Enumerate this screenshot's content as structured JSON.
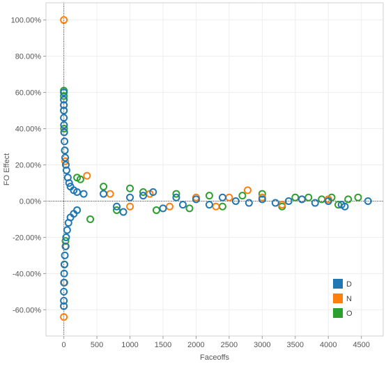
{
  "chart_data": {
    "type": "scatter",
    "xlabel": "Faceoffs",
    "ylabel": "FO Effect",
    "xlim": [
      -270,
      4830
    ],
    "ylim": [
      -0.745,
      1.095
    ],
    "x_ticks": [
      0,
      500,
      1000,
      1500,
      2000,
      2500,
      3000,
      3500,
      4000,
      4500
    ],
    "x_tick_labels": [
      "0",
      "500",
      "1000",
      "1500",
      "2000",
      "2500",
      "3000",
      "3500",
      "4000",
      "4500"
    ],
    "y_ticks": [
      1.0,
      0.8,
      0.6,
      0.4,
      0.2,
      0.0,
      -0.2,
      -0.4,
      -0.6
    ],
    "y_tick_labels": [
      "100.00%",
      "80.00%",
      "60.00%",
      "40.00%",
      "20.00%",
      "0.00%",
      "-20.00%",
      "-40.00%",
      "-60.00%"
    ],
    "reference_lines": {
      "x": 0,
      "y": 0
    },
    "grid": true,
    "legend_position": "bottom-right",
    "marker": "hollow-circle",
    "series": [
      {
        "name": "D",
        "color": "#1f77b4",
        "points": [
          [
            0,
            0.6
          ],
          [
            0,
            0.56
          ],
          [
            0,
            0.53
          ],
          [
            0,
            0.5
          ],
          [
            0,
            0.46
          ],
          [
            2,
            0.42
          ],
          [
            5,
            0.38
          ],
          [
            10,
            0.33
          ],
          [
            15,
            0.28
          ],
          [
            20,
            0.24
          ],
          [
            30,
            0.2
          ],
          [
            40,
            0.17
          ],
          [
            60,
            0.13
          ],
          [
            80,
            0.1
          ],
          [
            100,
            0.08
          ],
          [
            150,
            0.06
          ],
          [
            200,
            0.05
          ],
          [
            300,
            0.04
          ],
          [
            0,
            -0.58
          ],
          [
            0,
            -0.55
          ],
          [
            0,
            -0.5
          ],
          [
            2,
            -0.45
          ],
          [
            5,
            -0.4
          ],
          [
            10,
            -0.35
          ],
          [
            15,
            -0.3
          ],
          [
            25,
            -0.25
          ],
          [
            35,
            -0.2
          ],
          [
            50,
            -0.16
          ],
          [
            70,
            -0.12
          ],
          [
            100,
            -0.09
          ],
          [
            150,
            -0.07
          ],
          [
            200,
            -0.05
          ],
          [
            600,
            0.04
          ],
          [
            800,
            -0.03
          ],
          [
            900,
            -0.06
          ],
          [
            1000,
            0.02
          ],
          [
            1200,
            0.03
          ],
          [
            1350,
            0.05
          ],
          [
            1500,
            -0.04
          ],
          [
            1700,
            0.02
          ],
          [
            1800,
            -0.02
          ],
          [
            2000,
            0.01
          ],
          [
            2200,
            -0.02
          ],
          [
            2400,
            0.02
          ],
          [
            2600,
            0.0
          ],
          [
            2800,
            -0.01
          ],
          [
            3000,
            0.01
          ],
          [
            3200,
            -0.01
          ],
          [
            3400,
            0.0
          ],
          [
            3600,
            0.01
          ],
          [
            3800,
            -0.01
          ],
          [
            4000,
            0.0
          ],
          [
            4200,
            -0.02
          ],
          [
            4250,
            -0.03
          ],
          [
            4600,
            0.0
          ]
        ]
      },
      {
        "name": "N",
        "color": "#ff7f0e",
        "points": [
          [
            0,
            1.0
          ],
          [
            0,
            -0.64
          ],
          [
            0,
            -0.58
          ],
          [
            0,
            0.53
          ],
          [
            5,
            0.38
          ],
          [
            10,
            -0.45
          ],
          [
            20,
            0.22
          ],
          [
            30,
            -0.25
          ],
          [
            350,
            0.14
          ],
          [
            700,
            0.04
          ],
          [
            1000,
            -0.03
          ],
          [
            1300,
            0.04
          ],
          [
            1600,
            -0.03
          ],
          [
            2000,
            0.02
          ],
          [
            2300,
            -0.03
          ],
          [
            2500,
            0.02
          ],
          [
            2780,
            0.06
          ],
          [
            3000,
            0.02
          ],
          [
            3300,
            -0.02
          ],
          [
            3600,
            0.01
          ],
          [
            4000,
            0.01
          ]
        ]
      },
      {
        "name": "O",
        "color": "#2ca02c",
        "points": [
          [
            0,
            0.61
          ],
          [
            0,
            0.58
          ],
          [
            0,
            0.5
          ],
          [
            3,
            0.4
          ],
          [
            8,
            -0.35
          ],
          [
            15,
            0.28
          ],
          [
            25,
            -0.22
          ],
          [
            200,
            0.13
          ],
          [
            250,
            0.12
          ],
          [
            400,
            -0.1
          ],
          [
            600,
            0.08
          ],
          [
            800,
            -0.05
          ],
          [
            1000,
            0.07
          ],
          [
            1200,
            0.05
          ],
          [
            1400,
            -0.05
          ],
          [
            1700,
            0.04
          ],
          [
            1900,
            -0.04
          ],
          [
            2200,
            0.03
          ],
          [
            2400,
            -0.03
          ],
          [
            2700,
            0.03
          ],
          [
            3000,
            0.04
          ],
          [
            3300,
            -0.03
          ],
          [
            3500,
            0.02
          ],
          [
            3700,
            0.02
          ],
          [
            3900,
            0.01
          ],
          [
            4050,
            0.02
          ],
          [
            4150,
            -0.02
          ],
          [
            4300,
            0.01
          ],
          [
            4450,
            0.02
          ]
        ]
      }
    ]
  }
}
